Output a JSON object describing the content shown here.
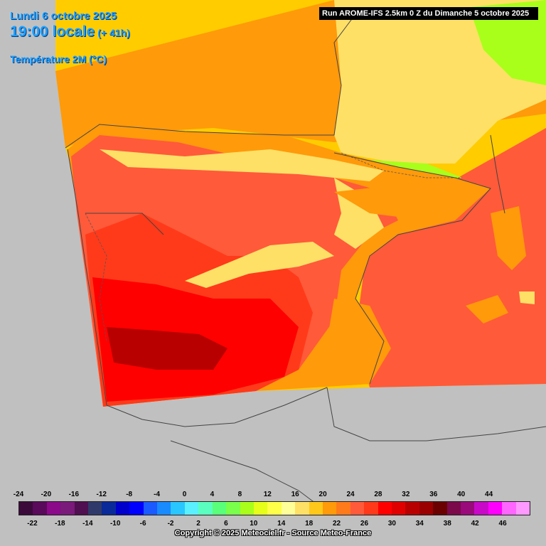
{
  "header": {
    "date": "Lundi 6 octobre 2025",
    "time": "19:00 locale",
    "lead": "(+ 41h)",
    "parameter": "Température 2M (°C)"
  },
  "run_info": "Run AROME-IFS 2.5km 0 Z du Dimanche 5 octobre 2025",
  "legend": {
    "upper_labels": [
      "-24",
      "-20",
      "-16",
      "-12",
      "-8",
      "-4",
      "0",
      "4",
      "8",
      "12",
      "16",
      "20",
      "24",
      "28",
      "32",
      "36",
      "40",
      "44"
    ],
    "lower_labels": [
      "-22",
      "-18",
      "-14",
      "-10",
      "-6",
      "-2",
      "2",
      "6",
      "10",
      "14",
      "18",
      "22",
      "26",
      "30",
      "34",
      "38",
      "42",
      "46"
    ],
    "colors": [
      "#3b0a3b",
      "#5a0a5a",
      "#8a0a8a",
      "#7a1a7a",
      "#500f50",
      "#2f3a6a",
      "#0a2a9a",
      "#0000cc",
      "#0000ff",
      "#1a5aff",
      "#1a8aff",
      "#2ac6ff",
      "#5af0ff",
      "#5affc0",
      "#5aff7a",
      "#7aff4a",
      "#aaff1a",
      "#e6ff1a",
      "#ffff4a",
      "#ffff9a",
      "#ffe066",
      "#ffc81a",
      "#ff9a0a",
      "#ff7a1a",
      "#ff5a3a",
      "#ff3a1a",
      "#ff0000",
      "#e00000",
      "#b80000",
      "#9a0000",
      "#6a0000",
      "#7a0a4a",
      "#9a0a7a",
      "#c80ac8",
      "#ff00ff",
      "#ff66ff",
      "#ff99ff"
    ]
  },
  "copyright": "Copyright © 2025 Meteociel.fr - Source Meteo-France",
  "map_colors": {
    "sea_warm": "#ffcc00",
    "land_outside": "#c0c0c0",
    "temp_14": "#ffff9a",
    "temp_18": "#ffe066",
    "temp_20": "#ff9a0a",
    "temp_24": "#ff5a3a",
    "temp_26": "#ff3a1a",
    "temp_28": "#ff0000",
    "temp_30": "#e00000",
    "temp_32": "#b80000",
    "temp_10": "#aaff1a",
    "temp_8": "#7aff4a"
  }
}
